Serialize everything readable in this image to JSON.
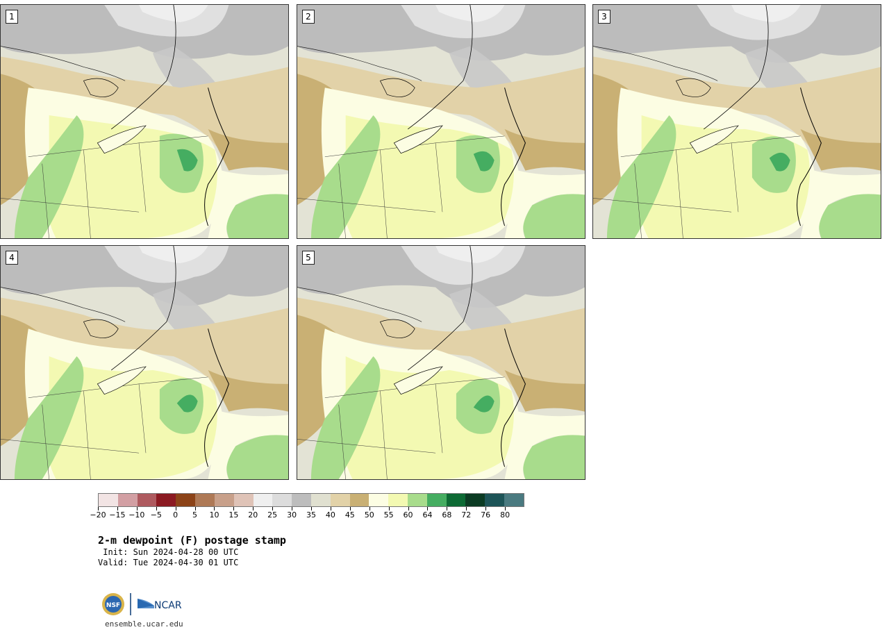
{
  "panels": [
    {
      "label": "1"
    },
    {
      "label": "2"
    },
    {
      "label": "3"
    },
    {
      "label": "4"
    },
    {
      "label": "5"
    }
  ],
  "colorbar": {
    "colors": [
      "#f2e4e4",
      "#d29fa3",
      "#ae5a5f",
      "#8b1a22",
      "#8c4318",
      "#ae7956",
      "#c8a08a",
      "#dfc3b7",
      "#efefef",
      "#dcdcdc",
      "#bdbdbd",
      "#e0e0d0",
      "#e2d2a8",
      "#c9b074",
      "#fcfde3",
      "#f3f9b2",
      "#a8dc8c",
      "#45ad61",
      "#0d6a34",
      "#0b3b23",
      "#1d5457",
      "#4a7a80"
    ],
    "ticks": [
      "−20",
      "−15",
      "−10",
      "−5",
      "0",
      "5",
      "10",
      "15",
      "20",
      "25",
      "30",
      "35",
      "40",
      "45",
      "50",
      "55",
      "60",
      "64",
      "68",
      "72",
      "76",
      "80"
    ]
  },
  "title": "2-m dewpoint (F) postage stamp",
  "init": " Init: Sun 2024-04-28 00 UTC",
  "valid": "Valid: Tue 2024-04-30 01 UTC",
  "logo": {
    "nsf": "NSF",
    "ncar": "NCAR"
  },
  "site": "ensemble.ucar.edu"
}
